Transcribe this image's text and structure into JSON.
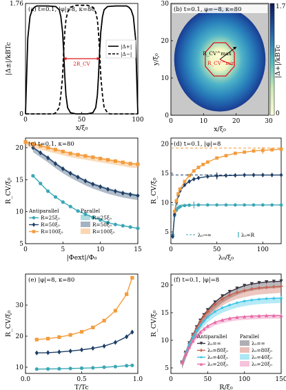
{
  "chart_data": [
    {
      "panel": "a",
      "type": "line",
      "title": "(a) t=0.1, |φ|=8, κ=80",
      "xlabel": "x/ξ₀",
      "ylabel": "|Δ±|/kBTc",
      "xlim": [
        0,
        100
      ],
      "ylim": [
        0,
        1.76
      ],
      "xticks": [
        0,
        50,
        100
      ],
      "yticks": [
        "0",
        "1.76"
      ],
      "annotation": "2R_CV",
      "legend": {
        "position": "right",
        "entries": [
          "|Δ+|",
          "|Δ−|"
        ]
      },
      "series": [
        {
          "name": "|Δ+|",
          "style": "solid",
          "x": [
            0,
            2,
            4,
            6,
            8,
            10,
            20,
            27,
            30,
            31.5,
            33,
            34,
            35,
            36,
            37.5,
            40,
            45,
            50,
            55,
            60,
            62.5,
            64,
            65,
            66,
            67,
            68.5,
            70,
            73,
            80,
            90,
            92,
            94,
            96,
            98,
            100
          ],
          "y": [
            0,
            1.2,
            1.55,
            1.66,
            1.7,
            1.72,
            1.72,
            1.71,
            1.66,
            1.55,
            1.3,
            1.0,
            0.6,
            0.3,
            0.1,
            0.02,
            0.0,
            0.0,
            0.0,
            0.02,
            0.1,
            0.3,
            0.6,
            1.0,
            1.3,
            1.55,
            1.66,
            1.71,
            1.72,
            1.72,
            1.7,
            1.66,
            1.55,
            1.2,
            0
          ]
        },
        {
          "name": "|Δ−|",
          "style": "dashed",
          "x": [
            0,
            10,
            25,
            27,
            30,
            31.5,
            33,
            34,
            35,
            36,
            37.5,
            40,
            45,
            50,
            55,
            60,
            62.5,
            64,
            65,
            66,
            67,
            68.5,
            70,
            73,
            75,
            90,
            100
          ],
          "y": [
            0,
            0,
            0.0,
            0.02,
            0.1,
            0.3,
            0.6,
            1.0,
            1.3,
            1.5,
            1.62,
            1.7,
            1.73,
            1.73,
            1.73,
            1.7,
            1.62,
            1.5,
            1.3,
            1.0,
            0.6,
            0.3,
            0.1,
            0.02,
            0,
            0,
            0
          ]
        }
      ]
    },
    {
      "panel": "b",
      "type": "heatmap",
      "title": "(b) t=0.1, φ=−8, κ=80",
      "xlabel": "x/ξ₀",
      "ylabel": "y/ξ₀",
      "xlim": [
        0,
        30
      ],
      "ylim": [
        0,
        30
      ],
      "xticks": [
        0,
        10,
        20,
        30
      ],
      "yticks": [
        0,
        10,
        20,
        30
      ],
      "colorbar": {
        "label": "|Δ+|/kBTc",
        "min": 0,
        "max": 1.7,
        "ticks": [
          "0",
          "1.7"
        ]
      },
      "annotations": [
        "R_CV^max",
        "R_CV^min"
      ],
      "disk": {
        "center": [
          15,
          15
        ],
        "radius": 14,
        "outer_color": "#c8c8c8"
      },
      "core_contour_radius": 4.6
    },
    {
      "panel": "c",
      "type": "line",
      "title": "(c) t=0.1, κ=80",
      "xlabel": "|Φext|/Φ₀",
      "ylabel": "R_CV/ξ₀",
      "xlim": [
        0,
        15
      ],
      "ylim": [
        5,
        21.5
      ],
      "xticks": [
        0,
        5,
        10,
        15
      ],
      "yticks": [
        5,
        10,
        15,
        20
      ],
      "legend": {
        "position": "bottom-left",
        "headers": [
          "Antiparallel",
          "Parallel"
        ],
        "entries": [
          "R=25ξ₀",
          "R=50ξ₀",
          "R=100ξ₀"
        ]
      },
      "series": [
        {
          "name": "R=25ξ₀",
          "color": "#3aa7b5",
          "marker": "circle",
          "x": [
            1,
            2,
            3,
            4,
            5,
            6,
            7,
            8,
            9,
            10,
            11,
            12,
            13,
            14,
            15
          ],
          "y": [
            15.6,
            14.4,
            13.2,
            12.3,
            11.5,
            10.8,
            10.1,
            9.6,
            9.1,
            8.7,
            8.3,
            8.0,
            7.8,
            7.6,
            7.4
          ],
          "band": null
        },
        {
          "name": "R=50ξ₀",
          "color": "#1e3f66",
          "marker": "diamond",
          "x": [
            1,
            2,
            3,
            4,
            5,
            6,
            7,
            8,
            9,
            10,
            11,
            12,
            13,
            14,
            15
          ],
          "y": [
            20.0,
            19.2,
            18.4,
            17.5,
            16.7,
            16.0,
            15.4,
            14.8,
            14.3,
            13.9,
            13.5,
            13.2,
            12.9,
            12.7,
            12.5
          ],
          "band": 0.7
        },
        {
          "name": "R=100ξ₀",
          "color": "#f39c3c",
          "marker": "square",
          "x": [
            0,
            1,
            2,
            3,
            4,
            5,
            6,
            7,
            8,
            9,
            10,
            11,
            12,
            13,
            14,
            15
          ],
          "y": [
            20.9,
            20.6,
            20.3,
            20.0,
            19.7,
            19.4,
            19.1,
            18.9,
            18.7,
            18.5,
            18.3,
            18.1,
            17.9,
            17.7,
            17.5,
            17.4
          ],
          "band": 0.6
        }
      ]
    },
    {
      "panel": "d",
      "type": "line",
      "title": "(d) t=0.1, |φ|=8",
      "xlabel": "λ₀/ξ₀",
      "ylabel": "R_CV/ξ₀",
      "xlim": [
        0,
        120
      ],
      "ylim": [
        3,
        21
      ],
      "xticks": [
        0,
        50,
        100
      ],
      "yticks": [
        5,
        10,
        15,
        20
      ],
      "legend": {
        "position": "bottom",
        "entries": [
          "λ₀→∞",
          "λ₀=R"
        ]
      },
      "asymptotes": [
        19.3,
        14.7,
        9.6
      ],
      "series": [
        {
          "name": "R=25ξ₀",
          "color": "#3aa7b5",
          "marker": "circle",
          "x": [
            2,
            4,
            6,
            8,
            10,
            15,
            20,
            30,
            40,
            50,
            60,
            70,
            80,
            90,
            100,
            110,
            120
          ],
          "y": [
            4.5,
            7.8,
            8.7,
            9.1,
            9.3,
            9.5,
            9.55,
            9.6,
            9.6,
            9.6,
            9.6,
            9.6,
            9.6,
            9.6,
            9.6,
            9.6,
            9.6
          ],
          "marker_at_R": 25
        },
        {
          "name": "R=50ξ₀",
          "color": "#1e3f66",
          "marker": "diamond",
          "x": [
            2,
            4,
            6,
            8,
            10,
            15,
            20,
            25,
            30,
            40,
            50,
            60,
            70,
            80,
            90,
            100,
            110,
            120
          ],
          "y": [
            4.2,
            8.0,
            10.0,
            11.2,
            12.0,
            13.0,
            13.6,
            14.0,
            14.2,
            14.45,
            14.55,
            14.6,
            14.65,
            14.7,
            14.7,
            14.7,
            14.7,
            14.7
          ],
          "marker_at_R": 50
        },
        {
          "name": "R=100ξ₀",
          "color": "#f39c3c",
          "marker": "square",
          "x": [
            4,
            6,
            8,
            10,
            15,
            20,
            25,
            30,
            35,
            40,
            50,
            60,
            70,
            80,
            90,
            100,
            110,
            120
          ],
          "y": [
            8.5,
            10.3,
            11.5,
            12.3,
            13.6,
            14.6,
            15.4,
            16.0,
            16.5,
            16.9,
            17.6,
            18.0,
            18.4,
            18.6,
            18.8,
            18.9,
            19.0,
            19.1
          ],
          "marker_at_R": 100
        }
      ]
    },
    {
      "panel": "e",
      "type": "line",
      "title": "(e) |φ|=8, κ=80",
      "xlabel": "T/Tc",
      "ylabel": "R_CV/ξ₀",
      "xlim": [
        0,
        1
      ],
      "ylim": [
        8,
        40
      ],
      "xticks": [
        "0.0",
        "0.5",
        "1.0"
      ],
      "yticks": [
        10,
        20,
        30
      ],
      "series": [
        {
          "name": "R=25ξ₀",
          "color": "#3aa7b5",
          "marker": "circle",
          "x": [
            0.1,
            0.2,
            0.3,
            0.4,
            0.5,
            0.6,
            0.7,
            0.8,
            0.9,
            0.95
          ],
          "y": [
            9.4,
            9.45,
            9.5,
            9.6,
            9.7,
            9.8,
            10.0,
            10.2,
            10.5,
            10.6
          ]
        },
        {
          "name": "R=50ξ₀",
          "color": "#1e3f66",
          "marker": "diamond",
          "x": [
            0.1,
            0.2,
            0.3,
            0.4,
            0.5,
            0.6,
            0.7,
            0.8,
            0.9,
            0.95
          ],
          "y": [
            14.6,
            14.7,
            14.9,
            15.2,
            15.6,
            16.1,
            16.8,
            18.0,
            19.8,
            21.3
          ]
        },
        {
          "name": "R=100ξ₀",
          "color": "#f39c3c",
          "marker": "square",
          "x": [
            0.1,
            0.2,
            0.3,
            0.4,
            0.5,
            0.6,
            0.7,
            0.8,
            0.9,
            0.95
          ],
          "y": [
            18.9,
            19.2,
            19.7,
            20.4,
            21.4,
            22.8,
            25.0,
            28.2,
            33.5,
            38.8
          ]
        }
      ]
    },
    {
      "panel": "f",
      "type": "line",
      "title": "(f) t=0.1, |φ|=8",
      "xlabel": "R/ξ₀",
      "ylabel": "R_CV/ξ₀",
      "xlim": [
        0,
        150
      ],
      "ylim": [
        4,
        22
      ],
      "xticks": [
        0,
        50,
        100,
        150
      ],
      "yticks": [
        5,
        10,
        15,
        20
      ],
      "legend": {
        "position": "bottom-right",
        "headers": [
          "Antiparallel",
          "Parallel"
        ],
        "entries": [
          "λ₀=∞",
          "λ₀=80ξ₀",
          "λ₀=40ξ₀",
          "λ₀=20ξ₀"
        ]
      },
      "series": [
        {
          "name": "λ₀=∞",
          "color": "#3a3440",
          "marker": "triangle-down",
          "x": [
            15,
            20,
            25,
            30,
            35,
            40,
            45,
            50,
            60,
            70,
            80,
            90,
            100,
            110,
            120,
            130,
            140,
            150
          ],
          "y": [
            6.0,
            7.8,
            9.5,
            11.0,
            12.4,
            13.6,
            14.6,
            15.5,
            16.9,
            18.0,
            18.8,
            19.4,
            19.9,
            20.2,
            20.4,
            20.55,
            20.65,
            20.7
          ],
          "band": [
            -1.2,
            0
          ]
        },
        {
          "name": "λ₀=80ξ₀",
          "color": "#c8604e",
          "marker": "plus",
          "x": [
            15,
            20,
            25,
            30,
            35,
            40,
            45,
            50,
            60,
            70,
            80,
            90,
            100,
            110,
            120,
            130,
            140,
            150
          ],
          "y": [
            6.0,
            7.8,
            9.4,
            10.9,
            12.2,
            13.4,
            14.4,
            15.2,
            16.5,
            17.5,
            18.2,
            18.7,
            19.0,
            19.3,
            19.5,
            19.6,
            19.7,
            19.8
          ],
          "band": [
            -1.2,
            0
          ]
        },
        {
          "name": "λ₀=40ξ₀",
          "color": "#2fc3e6",
          "marker": "star",
          "x": [
            15,
            20,
            25,
            30,
            35,
            40,
            45,
            50,
            60,
            70,
            80,
            90,
            100,
            110,
            120,
            130,
            140,
            150
          ],
          "y": [
            6.0,
            7.7,
            9.3,
            10.6,
            11.8,
            12.7,
            13.5,
            14.2,
            15.2,
            15.9,
            16.4,
            16.8,
            17.1,
            17.3,
            17.45,
            17.55,
            17.6,
            17.65
          ],
          "band": [
            -0.9,
            0
          ]
        },
        {
          "name": "λ₀=20ξ₀",
          "color": "#e86aa6",
          "marker": "triangle-up",
          "x": [
            15,
            20,
            25,
            30,
            35,
            40,
            45,
            50,
            60,
            70,
            80,
            90,
            100,
            110,
            120,
            130,
            140,
            150
          ],
          "y": [
            6.0,
            7.5,
            8.8,
            9.9,
            10.8,
            11.5,
            12.1,
            12.6,
            13.3,
            13.7,
            14.0,
            14.2,
            14.3,
            14.4,
            14.45,
            14.5,
            14.5,
            14.5
          ],
          "band": [
            -0.6,
            0
          ]
        }
      ]
    }
  ]
}
